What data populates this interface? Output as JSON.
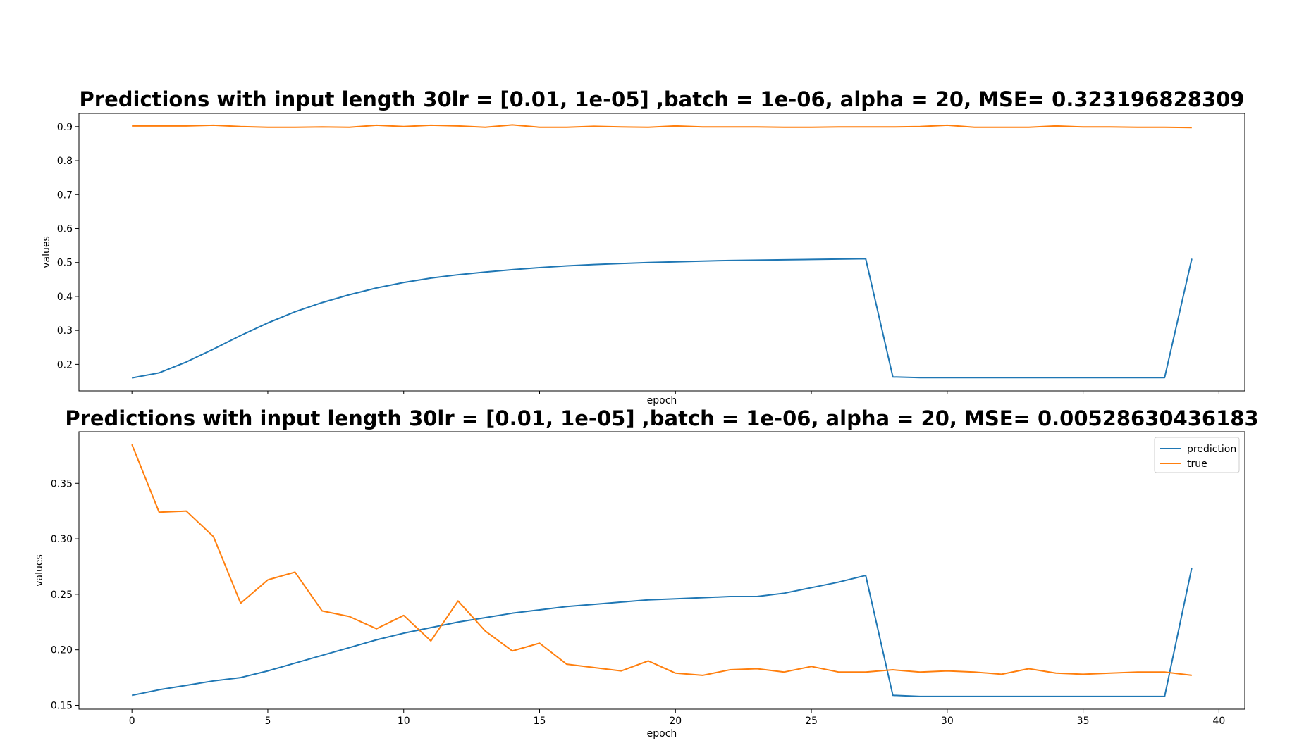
{
  "chart_data": [
    {
      "type": "line",
      "title": "Predictions with input length 30lr = [0.01, 1e-05] ,batch = 1e-06, alpha = 20, MSE= 0.323196828309",
      "xlabel": "epoch",
      "ylabel": "values",
      "xlim": [
        -1.95,
        40.95
      ],
      "ylim": [
        0.122,
        0.939
      ],
      "x_ticks": [
        0,
        5,
        10,
        15,
        20,
        25,
        30,
        35,
        40
      ],
      "x_tick_labels_shown": false,
      "y_ticks": [
        0.2,
        0.3,
        0.4,
        0.5,
        0.6,
        0.7,
        0.8,
        0.9
      ],
      "y_tick_labels": [
        "0.2",
        "0.3",
        "0.4",
        "0.5",
        "0.6",
        "0.7",
        "0.8",
        "0.9"
      ],
      "grid": false,
      "x": [
        0,
        1,
        2,
        3,
        4,
        5,
        6,
        7,
        8,
        9,
        10,
        11,
        12,
        13,
        14,
        15,
        16,
        17,
        18,
        19,
        20,
        21,
        22,
        23,
        24,
        25,
        26,
        27,
        28,
        29,
        30,
        31,
        32,
        33,
        34,
        35,
        36,
        37,
        38,
        39
      ],
      "series": [
        {
          "color": "#1f77b4",
          "values": [
            0.16,
            0.175,
            0.207,
            0.245,
            0.285,
            0.322,
            0.355,
            0.382,
            0.405,
            0.425,
            0.441,
            0.454,
            0.464,
            0.472,
            0.479,
            0.485,
            0.49,
            0.494,
            0.497,
            0.5,
            0.502,
            0.504,
            0.506,
            0.507,
            0.508,
            0.509,
            0.51,
            0.511,
            0.163,
            0.161,
            0.161,
            0.161,
            0.161,
            0.161,
            0.161,
            0.161,
            0.161,
            0.161,
            0.161,
            0.511
          ]
        },
        {
          "color": "#ff7f0e",
          "values": [
            0.902,
            0.902,
            0.902,
            0.904,
            0.9,
            0.898,
            0.898,
            0.899,
            0.898,
            0.904,
            0.9,
            0.904,
            0.902,
            0.898,
            0.905,
            0.898,
            0.898,
            0.901,
            0.899,
            0.898,
            0.902,
            0.899,
            0.899,
            0.899,
            0.898,
            0.898,
            0.899,
            0.899,
            0.899,
            0.9,
            0.904,
            0.898,
            0.898,
            0.898,
            0.902,
            0.899,
            0.899,
            0.898,
            0.898,
            0.897
          ]
        }
      ]
    },
    {
      "type": "line",
      "title": "Predictions with input length 30lr = [0.01, 1e-05] ,batch = 1e-06, alpha = 20, MSE= 0.00528630436183",
      "xlabel": "epoch",
      "ylabel": "values",
      "xlim": [
        -1.95,
        40.95
      ],
      "ylim": [
        0.1465,
        0.3965
      ],
      "x_ticks": [
        0,
        5,
        10,
        15,
        20,
        25,
        30,
        35,
        40
      ],
      "x_tick_labels": [
        "0",
        "5",
        "10",
        "15",
        "20",
        "25",
        "30",
        "35",
        "40"
      ],
      "y_ticks": [
        0.15,
        0.2,
        0.25,
        0.3,
        0.35
      ],
      "y_tick_labels": [
        "0.15",
        "0.20",
        "0.25",
        "0.30",
        "0.35"
      ],
      "grid": false,
      "legend_position": "top-right",
      "x": [
        0,
        1,
        2,
        3,
        4,
        5,
        6,
        7,
        8,
        9,
        10,
        11,
        12,
        13,
        14,
        15,
        16,
        17,
        18,
        19,
        20,
        21,
        22,
        23,
        24,
        25,
        26,
        27,
        28,
        29,
        30,
        31,
        32,
        33,
        34,
        35,
        36,
        37,
        38,
        39
      ],
      "series": [
        {
          "name": "prediction",
          "color": "#1f77b4",
          "values": [
            0.159,
            0.164,
            0.168,
            0.172,
            0.175,
            0.181,
            0.188,
            0.195,
            0.202,
            0.209,
            0.215,
            0.22,
            0.225,
            0.229,
            0.233,
            0.236,
            0.239,
            0.241,
            0.243,
            0.245,
            0.246,
            0.247,
            0.248,
            0.248,
            0.251,
            0.256,
            0.261,
            0.267,
            0.159,
            0.158,
            0.158,
            0.158,
            0.158,
            0.158,
            0.158,
            0.158,
            0.158,
            0.158,
            0.158,
            0.274
          ]
        },
        {
          "name": "true",
          "color": "#ff7f0e",
          "values": [
            0.385,
            0.324,
            0.325,
            0.302,
            0.242,
            0.263,
            0.27,
            0.235,
            0.23,
            0.219,
            0.231,
            0.208,
            0.244,
            0.217,
            0.199,
            0.206,
            0.187,
            0.184,
            0.181,
            0.19,
            0.179,
            0.177,
            0.182,
            0.183,
            0.18,
            0.185,
            0.18,
            0.18,
            0.182,
            0.18,
            0.181,
            0.18,
            0.178,
            0.183,
            0.179,
            0.178,
            0.179,
            0.18,
            0.18,
            0.177
          ]
        }
      ]
    }
  ]
}
